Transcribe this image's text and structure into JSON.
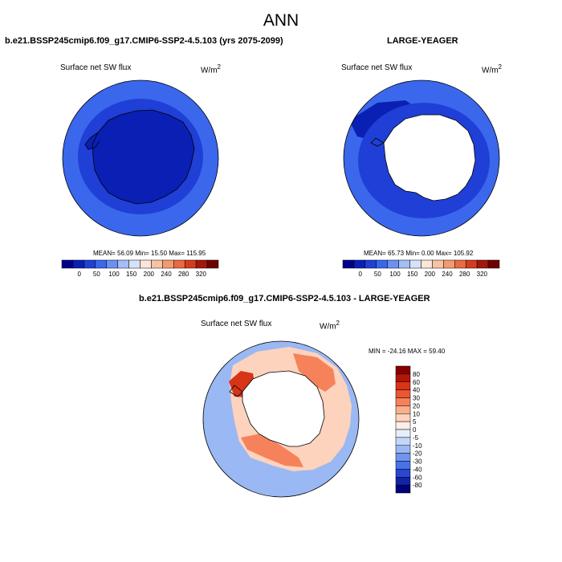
{
  "page": {
    "title": "ANN"
  },
  "panel_left": {
    "case_title": "b.e21.BSSP245cmip6.f09_g17.CMIP6-SSP2-4.5.103 (yrs 2075-2099)",
    "variable": "Surface net SW flux",
    "units_base": "W/m",
    "units_exp": "2",
    "stats": "MEAN=  56.09  Min=  15.50  Max= 115.95"
  },
  "panel_right": {
    "case_title": "LARGE-YEAGER",
    "variable": "Surface net SW flux",
    "units_base": "W/m",
    "units_exp": "2",
    "stats": "MEAN=  65.73  Min=   0.00  Max= 105.92"
  },
  "panel_diff": {
    "case_title": "b.e21.BSSP245cmip6.f09_g17.CMIP6-SSP2-4.5.103 - LARGE-YEAGER",
    "variable": "Surface net SW flux",
    "units_base": "W/m",
    "units_exp": "2",
    "stats": "MIN = -24.16 MAX =  59.40"
  },
  "colorbar_abs": {
    "tick_labels": [
      "0",
      "50",
      "100",
      "150",
      "200",
      "240",
      "280",
      "320"
    ],
    "colors": [
      "#00008c",
      "#0a1fb4",
      "#1f3fd6",
      "#3b67ec",
      "#6d91f1",
      "#a5bdf6",
      "#d5e2fa",
      "#fbe6d8",
      "#f7c3a5",
      "#f39a72",
      "#ea6a42",
      "#d23d1e",
      "#a4160c",
      "#6e0000"
    ]
  },
  "colorbar_diff": {
    "tick_labels": [
      "80",
      "60",
      "40",
      "30",
      "20",
      "10",
      "5",
      "0",
      "-5",
      "-10",
      "-20",
      "-30",
      "-40",
      "-60",
      "-80"
    ],
    "colors": [
      "#870000",
      "#b31607",
      "#d73418",
      "#ec5632",
      "#f6825b",
      "#fbae8a",
      "#fdd3bd",
      "#fdeee6",
      "#e6eefc",
      "#c4d6f8",
      "#9ab8f3",
      "#6f95ee",
      "#4a72e8",
      "#2848d2",
      "#1224a6",
      "#000078"
    ]
  },
  "map_colors": {
    "ocean_base_abs": "#3b67ec",
    "ocean_mid_abs": "#1f3fd6",
    "ocean_dark_abs": "#0a1fb4",
    "antarctica_abs": "#0a1fb4",
    "ice_mask": "#ffffff",
    "diff_base": "#9ab8f3",
    "diff_light_pos": "#fdd3bd",
    "diff_med_pos": "#f6825b",
    "diff_strong_pos": "#d73418"
  }
}
